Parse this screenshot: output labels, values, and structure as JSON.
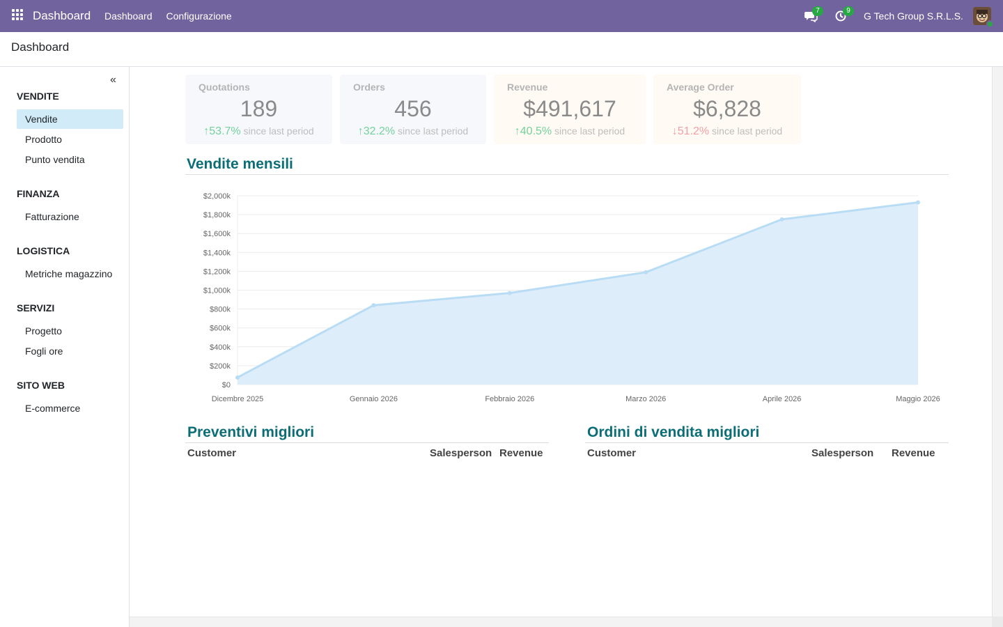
{
  "navbar": {
    "brand": "Dashboard",
    "menu": [
      "Dashboard",
      "Configurazione"
    ],
    "messages_count": "7",
    "activities_count": "9",
    "company": "G Tech Group S.R.L.S."
  },
  "control_panel": {
    "breadcrumb": "Dashboard"
  },
  "sidebar": {
    "collapse_symbol": "«",
    "sections": [
      {
        "title": "VENDITE",
        "items": [
          "Vendite",
          "Prodotto",
          "Punto vendita"
        ]
      },
      {
        "title": "FINANZA",
        "items": [
          "Fatturazione"
        ]
      },
      {
        "title": "LOGISTICA",
        "items": [
          "Metriche magazzino"
        ]
      },
      {
        "title": "SERVIZI",
        "items": [
          "Progetto",
          "Fogli ore"
        ]
      },
      {
        "title": "SITO WEB",
        "items": [
          "E-commerce"
        ]
      }
    ],
    "active_item": "Vendite"
  },
  "kpis": [
    {
      "title": "Quotations",
      "value": "189",
      "trend": "53.7%",
      "trend_dir": "up",
      "suffix": "since last period",
      "bg": "#f7f8fc"
    },
    {
      "title": "Orders",
      "value": "456",
      "trend": "32.2%",
      "trend_dir": "up",
      "suffix": "since last period",
      "bg": "#f7f8fc"
    },
    {
      "title": "Revenue",
      "value": "$491,617",
      "trend": "40.5%",
      "trend_dir": "up",
      "suffix": "since last period",
      "bg": "#fffaf4"
    },
    {
      "title": "Average Order",
      "value": "$6,828",
      "trend": "51.2%",
      "trend_dir": "down",
      "suffix": "since last period",
      "bg": "#fffaf4"
    }
  ],
  "monthly_sales": {
    "title": "Vendite mensili"
  },
  "chart_data": {
    "type": "area",
    "title": "Vendite mensili",
    "categories": [
      "Dicembre 2025",
      "Gennaio 2026",
      "Febbraio 2026",
      "Marzo 2026",
      "Aprile 2026",
      "Maggio 2026"
    ],
    "series": [
      {
        "values": [
          75,
          840,
          970,
          1190,
          1750,
          1930
        ]
      }
    ],
    "y_unit": "k",
    "ylim": [
      0,
      2000
    ],
    "y_ticks": [
      "$0",
      "$200k",
      "$400k",
      "$600k",
      "$800k",
      "$1,000k",
      "$1,200k",
      "$1,400k",
      "$1,600k",
      "$1,800k",
      "$2,000k"
    ],
    "grid": true,
    "line_color": "#b9dcf5",
    "fill_color": "#deedfa"
  },
  "top_quotations": {
    "title": "Preventivi migliori",
    "columns": [
      "Customer",
      "Salesperson",
      "Revenue"
    ]
  },
  "top_orders": {
    "title": "Ordini di vendita migliori",
    "columns": [
      "Customer",
      "Salesperson",
      "Revenue"
    ]
  }
}
